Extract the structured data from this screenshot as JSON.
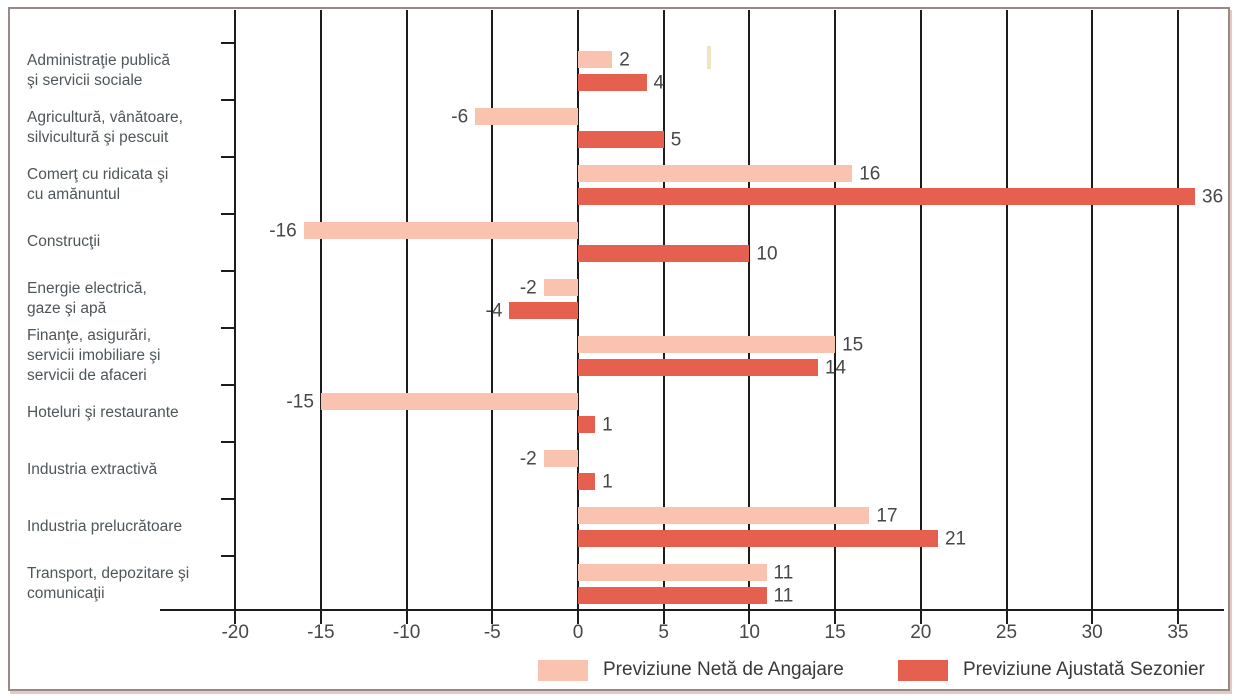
{
  "colors": {
    "net_forecast": "#f9c3b0",
    "seasonal_forecast": "#e6604f",
    "grid": "#1c1c1c",
    "category_text": "#4e565a",
    "value_text": "#474747",
    "frame_border": "#9a8a87"
  },
  "legend": {
    "series1_label": "Previziune Netă de Angajare",
    "series2_label": "Previziune Ajustată Sezonier"
  },
  "chart_data": {
    "type": "bar",
    "orientation": "horizontal",
    "title": "",
    "xlabel": "",
    "ylabel": "",
    "grid": "vertical",
    "legend_position": "bottom",
    "xlim": [
      -20,
      38
    ],
    "x_ticks": [
      -20,
      -15,
      -10,
      -5,
      0,
      5,
      10,
      15,
      20,
      25,
      30,
      35
    ],
    "categories": [
      "Administraţie publică\nşi servicii sociale",
      "Agricultură, vânătoare,\nsilvicultură şi pescuit",
      "Comerţ cu ridicata şi\ncu amănuntul",
      "Construcţii",
      "Energie electrică,\ngaze şi apă",
      "Finanţe, asigurări,\nservicii imobiliare şi\nservicii de afaceri",
      "Hoteluri şi restaurante",
      "Industria extractivă",
      "Industria prelucrătoare",
      "Transport, depozitare şi\ncomunicaţii"
    ],
    "series": [
      {
        "name": "Previziune Netă de Angajare",
        "color_key": "net_forecast",
        "values": [
          2,
          -6,
          16,
          -16,
          -2,
          15,
          -15,
          -2,
          17,
          11
        ]
      },
      {
        "name": "Previziune Ajustată Sezonier",
        "color_key": "seasonal_forecast",
        "values": [
          4,
          5,
          36,
          10,
          -4,
          14,
          1,
          1,
          21,
          11
        ]
      }
    ]
  }
}
